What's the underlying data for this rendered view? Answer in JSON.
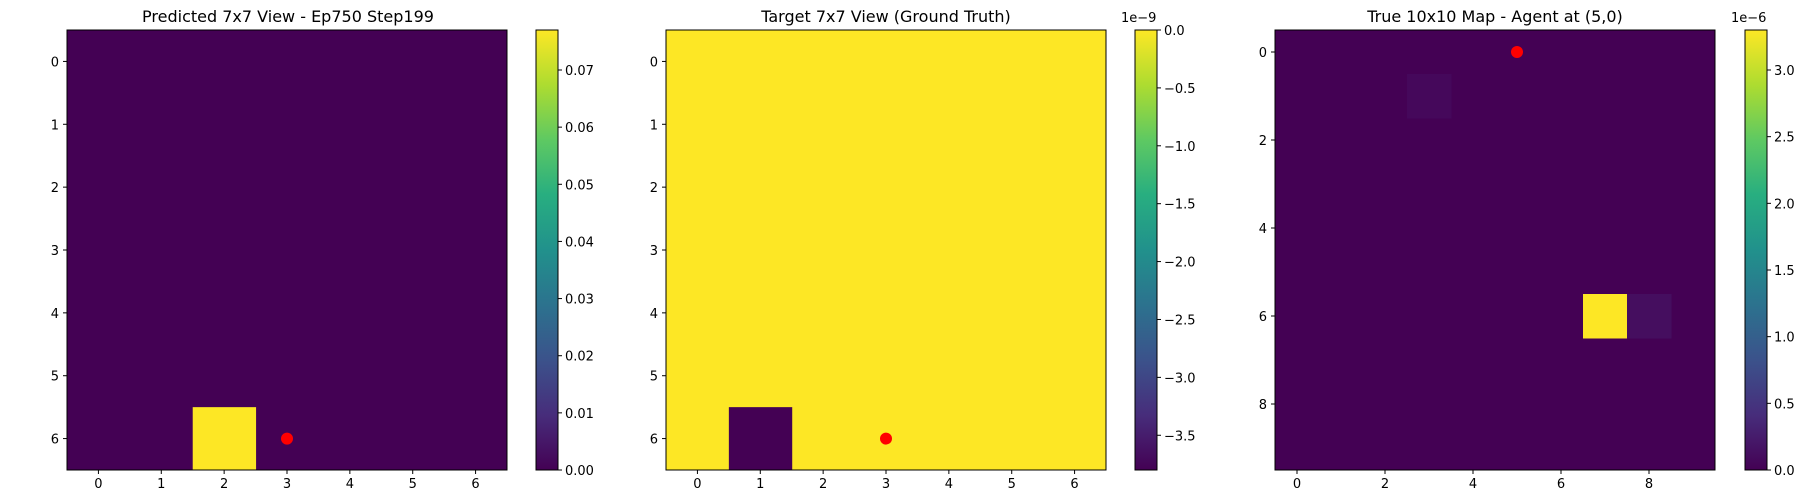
{
  "chart_data": [
    {
      "type": "heatmap",
      "title": "Predicted 7x7 View - Ep750 Step199",
      "size": 7,
      "x_ticks": [
        0,
        1,
        2,
        3,
        4,
        5,
        6
      ],
      "y_ticks": [
        0,
        1,
        2,
        3,
        4,
        5,
        6
      ],
      "cells": [
        {
          "row": 6,
          "col": 2,
          "value": 0.077
        }
      ],
      "background_value": 0.0,
      "agent_marker": {
        "row": 6,
        "col": 3,
        "color": "#ff0000"
      },
      "colorbar": {
        "min": 0.0,
        "max": 0.077,
        "ticks": [
          0.0,
          0.01,
          0.02,
          0.03,
          0.04,
          0.05,
          0.06,
          0.07
        ],
        "tick_labels": [
          "0.00",
          "0.01",
          "0.02",
          "0.03",
          "0.04",
          "0.05",
          "0.06",
          "0.07"
        ],
        "offset_text": ""
      },
      "colormap": "viridis"
    },
    {
      "type": "heatmap",
      "title": "Target 7x7 View (Ground Truth)",
      "size": 7,
      "x_ticks": [
        0,
        1,
        2,
        3,
        4,
        5,
        6
      ],
      "y_ticks": [
        0,
        1,
        2,
        3,
        4,
        5,
        6
      ],
      "cells": [
        {
          "row": 6,
          "col": 1,
          "value": -3.8
        }
      ],
      "background_value": 0.0,
      "agent_marker": {
        "row": 6,
        "col": 3,
        "color": "#ff0000"
      },
      "colorbar": {
        "min": -3.8,
        "max": 0.0,
        "ticks": [
          0.0,
          -0.5,
          -1.0,
          -1.5,
          -2.0,
          -2.5,
          -3.0,
          -3.5
        ],
        "tick_labels": [
          "0.0",
          "−0.5",
          "−1.0",
          "−1.5",
          "−2.0",
          "−2.5",
          "−3.0",
          "−3.5"
        ],
        "offset_text": "1e−9"
      },
      "colormap": "viridis"
    },
    {
      "type": "heatmap",
      "title": "True 10x10 Map - Agent at (5,0)",
      "size": 10,
      "x_ticks": [
        0,
        2,
        4,
        6,
        8
      ],
      "y_ticks": [
        0,
        2,
        4,
        6,
        8
      ],
      "cells": [
        {
          "row": 6,
          "col": 7,
          "value": 3.3
        },
        {
          "row": 6,
          "col": 8,
          "value": 0.12
        },
        {
          "row": 1,
          "col": 3,
          "value": 0.07
        }
      ],
      "background_value": 0.0,
      "agent_marker": {
        "row": 0,
        "col": 5,
        "color": "#ff0000"
      },
      "colorbar": {
        "min": 0.0,
        "max": 3.3,
        "ticks": [
          0.0,
          0.5,
          1.0,
          1.5,
          2.0,
          2.5,
          3.0
        ],
        "tick_labels": [
          "0.0",
          "0.5",
          "1.0",
          "1.5",
          "2.0",
          "2.5",
          "3.0"
        ],
        "offset_text": "1e−6"
      },
      "colormap": "viridis"
    }
  ]
}
